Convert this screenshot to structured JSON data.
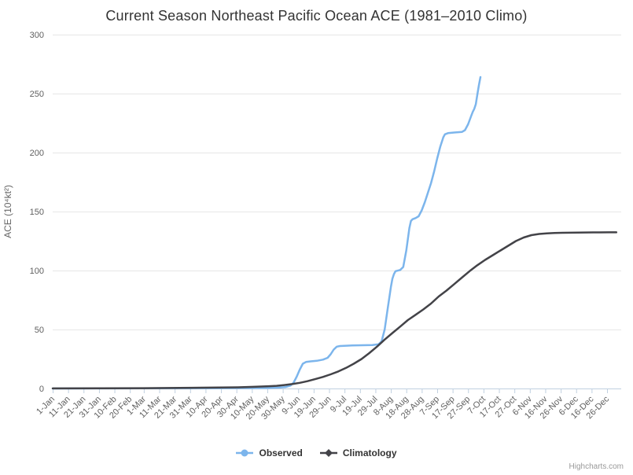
{
  "credits": {
    "label": "Highcharts.com"
  },
  "chart_data": {
    "type": "line",
    "title": "Current Season Northeast Pacific Ocean ACE (1981–2010 Climo)",
    "xlabel": "",
    "ylabel": "ACE (10⁴kt²)",
    "ylim": [
      0,
      300
    ],
    "yticks": [
      0,
      50,
      100,
      150,
      200,
      250,
      300
    ],
    "grid": true,
    "legend_position": "bottom-center",
    "x_unit": "day-of-year",
    "xtick_labels": [
      "1-Jan",
      "11-Jan",
      "21-Jan",
      "31-Jan",
      "10-Feb",
      "20-Feb",
      "1-Mar",
      "11-Mar",
      "21-Mar",
      "31-Mar",
      "10-Apr",
      "20-Apr",
      "30-Apr",
      "10-May",
      "20-May",
      "30-May",
      "9-Jun",
      "19-Jun",
      "29-Jun",
      "9-Jul",
      "19-Jul",
      "29-Jul",
      "8-Aug",
      "18-Aug",
      "28-Aug",
      "7-Sep",
      "17-Sep",
      "27-Sep",
      "7-Oct",
      "17-Oct",
      "27-Oct",
      "6-Nov",
      "16-Nov",
      "26-Nov",
      "6-Dec",
      "16-Dec",
      "26-Dec"
    ],
    "xtick_days": [
      1,
      11,
      21,
      31,
      41,
      51,
      60,
      70,
      80,
      90,
      100,
      110,
      120,
      130,
      140,
      150,
      160,
      170,
      180,
      190,
      200,
      210,
      220,
      230,
      240,
      250,
      260,
      270,
      280,
      290,
      300,
      310,
      320,
      330,
      340,
      350,
      360
    ],
    "colors": {
      "observed": "#7cb5ec",
      "climatology": "#434348",
      "gridline": "#e6e6e6",
      "axis_line": "#c0d0e0",
      "tick": "#c0d0e0",
      "axis_label": "#606060",
      "axis_title": "#666666",
      "title": "#333333"
    },
    "series": [
      {
        "name": "Observed",
        "color": "#7cb5ec",
        "legend_marker": "circle",
        "points": [
          [
            1,
            0
          ],
          [
            32,
            0.1
          ],
          [
            60,
            0.2
          ],
          [
            91,
            0.3
          ],
          [
            121,
            0.4
          ],
          [
            140,
            0.5
          ],
          [
            148,
            0.8
          ],
          [
            152,
            1.3
          ],
          [
            155,
            2.5
          ],
          [
            157,
            5
          ],
          [
            159,
            10
          ],
          [
            161,
            16
          ],
          [
            163,
            21
          ],
          [
            165,
            22.5
          ],
          [
            168,
            23
          ],
          [
            172,
            23.5
          ],
          [
            176,
            24.5
          ],
          [
            179,
            26
          ],
          [
            181,
            29
          ],
          [
            183,
            33
          ],
          [
            185,
            35.5
          ],
          [
            187,
            36
          ],
          [
            195,
            36.5
          ],
          [
            208,
            36.8
          ],
          [
            212,
            37.5
          ],
          [
            214,
            40
          ],
          [
            216,
            50
          ],
          [
            218,
            68
          ],
          [
            220,
            86
          ],
          [
            221,
            93
          ],
          [
            222,
            97
          ],
          [
            223,
            99.5
          ],
          [
            226,
            100.5
          ],
          [
            228,
            103
          ],
          [
            230,
            117
          ],
          [
            232,
            136
          ],
          [
            233,
            142
          ],
          [
            234,
            143.5
          ],
          [
            236,
            144.5
          ],
          [
            238,
            146
          ],
          [
            240,
            151
          ],
          [
            242,
            158
          ],
          [
            244,
            166
          ],
          [
            246,
            174
          ],
          [
            248,
            184
          ],
          [
            250,
            195
          ],
          [
            252,
            205
          ],
          [
            254,
            213
          ],
          [
            255,
            215.5
          ],
          [
            257,
            216.5
          ],
          [
            261,
            217
          ],
          [
            266,
            217.5
          ],
          [
            268,
            219
          ],
          [
            270,
            224
          ],
          [
            272,
            231
          ],
          [
            273,
            234.5
          ],
          [
            274,
            237
          ],
          [
            275,
            241
          ],
          [
            276,
            249
          ],
          [
            277,
            257
          ],
          [
            278,
            264
          ]
        ]
      },
      {
        "name": "Climatology",
        "color": "#434348",
        "legend_marker": "diamond",
        "points": [
          [
            1,
            0.1
          ],
          [
            32,
            0.2
          ],
          [
            60,
            0.3
          ],
          [
            91,
            0.6
          ],
          [
            121,
            1
          ],
          [
            131,
            1.4
          ],
          [
            141,
            1.9
          ],
          [
            146,
            2.3
          ],
          [
            151,
            2.9
          ],
          [
            156,
            3.7
          ],
          [
            161,
            4.8
          ],
          [
            166,
            6.2
          ],
          [
            171,
            7.9
          ],
          [
            176,
            9.8
          ],
          [
            181,
            12
          ],
          [
            186,
            14.5
          ],
          [
            191,
            17.5
          ],
          [
            196,
            21
          ],
          [
            201,
            25
          ],
          [
            206,
            30
          ],
          [
            211,
            35.5
          ],
          [
            216,
            41.5
          ],
          [
            221,
            47
          ],
          [
            226,
            52.5
          ],
          [
            231,
            58
          ],
          [
            236,
            62.5
          ],
          [
            241,
            67
          ],
          [
            246,
            72
          ],
          [
            251,
            78
          ],
          [
            256,
            83
          ],
          [
            261,
            88.5
          ],
          [
            266,
            94
          ],
          [
            271,
            99.5
          ],
          [
            276,
            104.5
          ],
          [
            281,
            109
          ],
          [
            286,
            113
          ],
          [
            291,
            117
          ],
          [
            296,
            121
          ],
          [
            301,
            125
          ],
          [
            306,
            128
          ],
          [
            311,
            130
          ],
          [
            316,
            131
          ],
          [
            321,
            131.5
          ],
          [
            326,
            131.8
          ],
          [
            331,
            132
          ],
          [
            341,
            132.2
          ],
          [
            351,
            132.3
          ],
          [
            361,
            132.4
          ],
          [
            366,
            132.4
          ]
        ]
      }
    ]
  }
}
